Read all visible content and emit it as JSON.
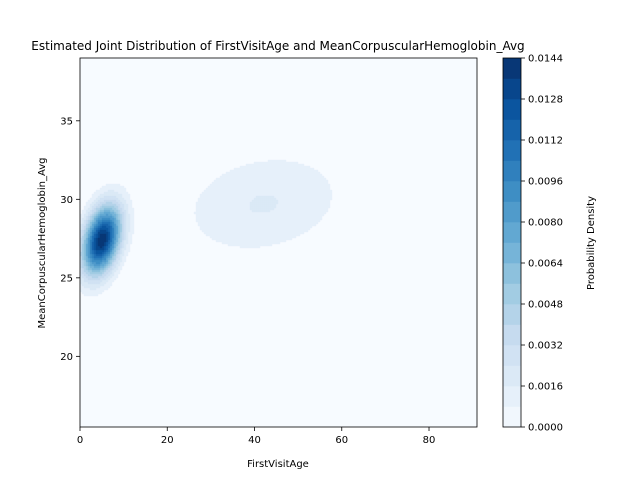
{
  "chart_data": {
    "type": "heatmap",
    "subtype": "kde-contour",
    "title": "Estimated Joint Distribution of FirstVisitAge and MeanCorpuscularHemoglobin_Avg",
    "xlabel": "FirstVisitAge",
    "ylabel": "MeanCorpuscularHemoglobin_Avg",
    "xlim": [
      0,
      91
    ],
    "ylim": [
      15.5,
      39
    ],
    "x_ticks": [
      "0",
      "20",
      "40",
      "60",
      "80"
    ],
    "x_tick_values": [
      0,
      20,
      40,
      60,
      80
    ],
    "y_ticks": [
      "20",
      "25",
      "30",
      "35"
    ],
    "y_tick_values": [
      20,
      25,
      30,
      35
    ],
    "colorbar": {
      "label": "Probability Density",
      "min": 0,
      "max": 0.0144,
      "levels": 18,
      "ticks": [
        "0.0000",
        "0.0016",
        "0.0032",
        "0.0048",
        "0.0064",
        "0.0080",
        "0.0096",
        "0.0112",
        "0.0128",
        "0.0144"
      ],
      "tick_values": [
        0,
        0.0016,
        0.0032,
        0.0048,
        0.0064,
        0.008,
        0.0096,
        0.0112,
        0.0128,
        0.0144
      ],
      "colormap": "Blues",
      "color_low": "#f7fbff",
      "color_high": "#08306b"
    },
    "components": [
      {
        "x": 5,
        "y": 27.4,
        "sx": 3.0,
        "sy": 1.5,
        "rho": 0.35,
        "peak": 0.0142
      },
      {
        "x": 42,
        "y": 29.7,
        "sx": 13.0,
        "sy": 2.3,
        "rho": 0.2,
        "peak": 0.00165
      }
    ]
  }
}
